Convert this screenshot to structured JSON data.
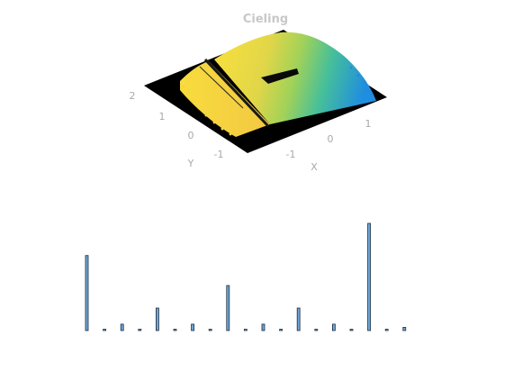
{
  "chart_data": [
    {
      "type": "scatter",
      "plot_style": "3d-point-cloud",
      "title": "Cieling",
      "xlabel": "X",
      "ylabel": "Y",
      "zlabel": "",
      "x_ticks": [
        "-1",
        "0",
        "1"
      ],
      "y_ticks": [
        "-1",
        "0",
        "1",
        "2"
      ],
      "z_ticks": [],
      "colormap": "parula",
      "colors": {
        "background_plane": "#000000",
        "low": "#2a8de0",
        "mid": "#8fcf5a",
        "high": "#f7e23b",
        "text": "#a9a9a9"
      },
      "grid": false
    },
    {
      "type": "bar",
      "title": "",
      "xlabel": "",
      "ylabel": "",
      "axes_visible": false,
      "bar_color": "#6ba6d8",
      "edge_color": "#1f2d3d",
      "values": [
        0.7,
        0.01,
        0.06,
        0.01,
        0.21,
        0.01,
        0.06,
        0.01,
        0.42,
        0.01,
        0.06,
        0.01,
        0.21,
        0.01,
        0.06,
        0.01,
        1.0,
        0.01,
        0.03
      ],
      "ylim": [
        0,
        1
      ]
    }
  ]
}
